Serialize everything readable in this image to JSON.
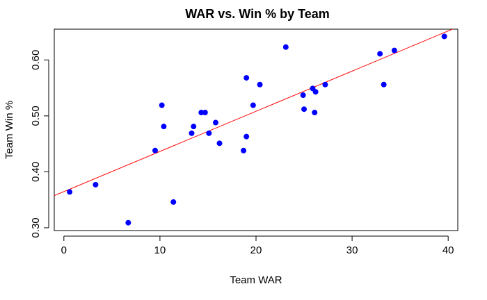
{
  "chart_data": {
    "type": "scatter",
    "title": "WAR vs. Win % by Team",
    "xlabel": "Team WAR",
    "ylabel": "Team Win %",
    "xlim": [
      -1,
      41
    ],
    "ylim": [
      0.295,
      0.655
    ],
    "xticks": [
      0,
      10,
      20,
      30,
      40
    ],
    "yticks": [
      0.3,
      0.4,
      0.5,
      0.6
    ],
    "xtick_labels": [
      "0",
      "10",
      "20",
      "30",
      "40"
    ],
    "ytick_labels": [
      "0.30",
      "0.40",
      "0.50",
      "0.60"
    ],
    "point_color": "#0000ff",
    "line_color": "#ff0000",
    "grid": false,
    "points": [
      {
        "x": 0.6,
        "y": 0.364
      },
      {
        "x": 3.3,
        "y": 0.377
      },
      {
        "x": 6.7,
        "y": 0.309
      },
      {
        "x": 9.5,
        "y": 0.438
      },
      {
        "x": 10.2,
        "y": 0.519
      },
      {
        "x": 10.4,
        "y": 0.481
      },
      {
        "x": 11.4,
        "y": 0.346
      },
      {
        "x": 13.3,
        "y": 0.469
      },
      {
        "x": 13.5,
        "y": 0.481
      },
      {
        "x": 14.3,
        "y": 0.506
      },
      {
        "x": 14.7,
        "y": 0.506
      },
      {
        "x": 15.1,
        "y": 0.469
      },
      {
        "x": 15.8,
        "y": 0.488
      },
      {
        "x": 16.2,
        "y": 0.451
      },
      {
        "x": 18.7,
        "y": 0.438
      },
      {
        "x": 19.0,
        "y": 0.568
      },
      {
        "x": 19.0,
        "y": 0.463
      },
      {
        "x": 19.7,
        "y": 0.519
      },
      {
        "x": 20.4,
        "y": 0.556
      },
      {
        "x": 23.1,
        "y": 0.623
      },
      {
        "x": 24.9,
        "y": 0.537
      },
      {
        "x": 25.0,
        "y": 0.512
      },
      {
        "x": 25.9,
        "y": 0.549
      },
      {
        "x": 26.1,
        "y": 0.506
      },
      {
        "x": 26.2,
        "y": 0.543
      },
      {
        "x": 27.2,
        "y": 0.556
      },
      {
        "x": 32.9,
        "y": 0.611
      },
      {
        "x": 33.3,
        "y": 0.556
      },
      {
        "x": 34.4,
        "y": 0.617
      },
      {
        "x": 39.6,
        "y": 0.642
      }
    ],
    "regression": {
      "intercept": 0.3646,
      "slope": 0.00718
    }
  }
}
